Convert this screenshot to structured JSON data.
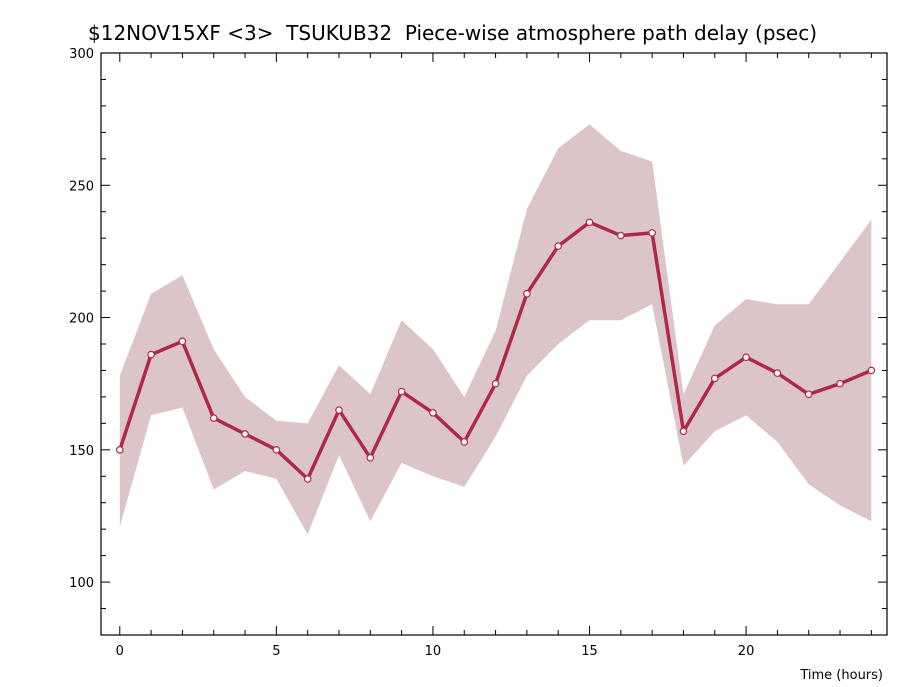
{
  "chart_data": {
    "type": "line",
    "title": "$12NOV15XF <3>  TSUKUB32  Piece-wise atmosphere path delay (psec)",
    "xlabel": "Time (hours)",
    "ylabel": "",
    "xlim": [
      -0.6,
      24.5
    ],
    "ylim": [
      80,
      300
    ],
    "x_ticks": [
      0,
      5,
      10,
      15,
      20
    ],
    "y_ticks": [
      100,
      150,
      200,
      250,
      300
    ],
    "x": [
      0,
      1,
      2,
      3,
      4,
      5,
      6,
      7,
      8,
      9,
      10,
      11,
      12,
      13,
      14,
      15,
      16,
      17,
      18,
      19,
      20,
      21,
      22,
      23,
      24
    ],
    "series": [
      {
        "values": [
          150,
          186,
          191,
          162,
          156,
          150,
          139,
          165,
          147,
          172,
          164,
          153,
          175,
          209,
          227,
          236,
          231,
          232,
          157,
          177,
          185,
          179,
          171,
          175,
          180
        ],
        "upper": [
          178,
          209,
          216,
          188,
          170,
          161,
          160,
          182,
          171,
          199,
          188,
          170,
          195,
          241,
          264,
          273,
          263,
          259,
          171,
          197,
          207,
          205,
          205,
          221,
          237
        ],
        "lower": [
          121,
          163,
          166,
          135,
          142,
          139,
          118,
          148,
          123,
          145,
          140,
          136,
          155,
          178,
          190,
          199,
          199,
          205,
          144,
          157,
          163,
          153,
          137,
          129,
          123
        ],
        "color": "#b02848",
        "band_color": "#dcc5c9"
      }
    ]
  }
}
